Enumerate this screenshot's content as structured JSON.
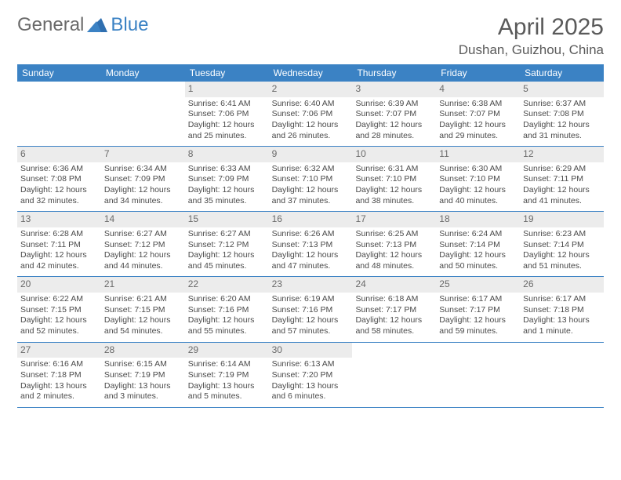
{
  "logo": {
    "textA": "General",
    "textB": "Blue"
  },
  "title": "April 2025",
  "location": "Dushan, Guizhou, China",
  "colors": {
    "header_bg": "#3b82c4",
    "header_text": "#ffffff",
    "daynum_bg": "#ececec",
    "text": "#4a4a4a",
    "rule": "#3b82c4"
  },
  "day_labels": [
    "Sunday",
    "Monday",
    "Tuesday",
    "Wednesday",
    "Thursday",
    "Friday",
    "Saturday"
  ],
  "weeks": [
    [
      null,
      null,
      {
        "n": "1",
        "sr": "Sunrise: 6:41 AM",
        "ss": "Sunset: 7:06 PM",
        "dl": "Daylight: 12 hours and 25 minutes."
      },
      {
        "n": "2",
        "sr": "Sunrise: 6:40 AM",
        "ss": "Sunset: 7:06 PM",
        "dl": "Daylight: 12 hours and 26 minutes."
      },
      {
        "n": "3",
        "sr": "Sunrise: 6:39 AM",
        "ss": "Sunset: 7:07 PM",
        "dl": "Daylight: 12 hours and 28 minutes."
      },
      {
        "n": "4",
        "sr": "Sunrise: 6:38 AM",
        "ss": "Sunset: 7:07 PM",
        "dl": "Daylight: 12 hours and 29 minutes."
      },
      {
        "n": "5",
        "sr": "Sunrise: 6:37 AM",
        "ss": "Sunset: 7:08 PM",
        "dl": "Daylight: 12 hours and 31 minutes."
      }
    ],
    [
      {
        "n": "6",
        "sr": "Sunrise: 6:36 AM",
        "ss": "Sunset: 7:08 PM",
        "dl": "Daylight: 12 hours and 32 minutes."
      },
      {
        "n": "7",
        "sr": "Sunrise: 6:34 AM",
        "ss": "Sunset: 7:09 PM",
        "dl": "Daylight: 12 hours and 34 minutes."
      },
      {
        "n": "8",
        "sr": "Sunrise: 6:33 AM",
        "ss": "Sunset: 7:09 PM",
        "dl": "Daylight: 12 hours and 35 minutes."
      },
      {
        "n": "9",
        "sr": "Sunrise: 6:32 AM",
        "ss": "Sunset: 7:10 PM",
        "dl": "Daylight: 12 hours and 37 minutes."
      },
      {
        "n": "10",
        "sr": "Sunrise: 6:31 AM",
        "ss": "Sunset: 7:10 PM",
        "dl": "Daylight: 12 hours and 38 minutes."
      },
      {
        "n": "11",
        "sr": "Sunrise: 6:30 AM",
        "ss": "Sunset: 7:10 PM",
        "dl": "Daylight: 12 hours and 40 minutes."
      },
      {
        "n": "12",
        "sr": "Sunrise: 6:29 AM",
        "ss": "Sunset: 7:11 PM",
        "dl": "Daylight: 12 hours and 41 minutes."
      }
    ],
    [
      {
        "n": "13",
        "sr": "Sunrise: 6:28 AM",
        "ss": "Sunset: 7:11 PM",
        "dl": "Daylight: 12 hours and 42 minutes."
      },
      {
        "n": "14",
        "sr": "Sunrise: 6:27 AM",
        "ss": "Sunset: 7:12 PM",
        "dl": "Daylight: 12 hours and 44 minutes."
      },
      {
        "n": "15",
        "sr": "Sunrise: 6:27 AM",
        "ss": "Sunset: 7:12 PM",
        "dl": "Daylight: 12 hours and 45 minutes."
      },
      {
        "n": "16",
        "sr": "Sunrise: 6:26 AM",
        "ss": "Sunset: 7:13 PM",
        "dl": "Daylight: 12 hours and 47 minutes."
      },
      {
        "n": "17",
        "sr": "Sunrise: 6:25 AM",
        "ss": "Sunset: 7:13 PM",
        "dl": "Daylight: 12 hours and 48 minutes."
      },
      {
        "n": "18",
        "sr": "Sunrise: 6:24 AM",
        "ss": "Sunset: 7:14 PM",
        "dl": "Daylight: 12 hours and 50 minutes."
      },
      {
        "n": "19",
        "sr": "Sunrise: 6:23 AM",
        "ss": "Sunset: 7:14 PM",
        "dl": "Daylight: 12 hours and 51 minutes."
      }
    ],
    [
      {
        "n": "20",
        "sr": "Sunrise: 6:22 AM",
        "ss": "Sunset: 7:15 PM",
        "dl": "Daylight: 12 hours and 52 minutes."
      },
      {
        "n": "21",
        "sr": "Sunrise: 6:21 AM",
        "ss": "Sunset: 7:15 PM",
        "dl": "Daylight: 12 hours and 54 minutes."
      },
      {
        "n": "22",
        "sr": "Sunrise: 6:20 AM",
        "ss": "Sunset: 7:16 PM",
        "dl": "Daylight: 12 hours and 55 minutes."
      },
      {
        "n": "23",
        "sr": "Sunrise: 6:19 AM",
        "ss": "Sunset: 7:16 PM",
        "dl": "Daylight: 12 hours and 57 minutes."
      },
      {
        "n": "24",
        "sr": "Sunrise: 6:18 AM",
        "ss": "Sunset: 7:17 PM",
        "dl": "Daylight: 12 hours and 58 minutes."
      },
      {
        "n": "25",
        "sr": "Sunrise: 6:17 AM",
        "ss": "Sunset: 7:17 PM",
        "dl": "Daylight: 12 hours and 59 minutes."
      },
      {
        "n": "26",
        "sr": "Sunrise: 6:17 AM",
        "ss": "Sunset: 7:18 PM",
        "dl": "Daylight: 13 hours and 1 minute."
      }
    ],
    [
      {
        "n": "27",
        "sr": "Sunrise: 6:16 AM",
        "ss": "Sunset: 7:18 PM",
        "dl": "Daylight: 13 hours and 2 minutes."
      },
      {
        "n": "28",
        "sr": "Sunrise: 6:15 AM",
        "ss": "Sunset: 7:19 PM",
        "dl": "Daylight: 13 hours and 3 minutes."
      },
      {
        "n": "29",
        "sr": "Sunrise: 6:14 AM",
        "ss": "Sunset: 7:19 PM",
        "dl": "Daylight: 13 hours and 5 minutes."
      },
      {
        "n": "30",
        "sr": "Sunrise: 6:13 AM",
        "ss": "Sunset: 7:20 PM",
        "dl": "Daylight: 13 hours and 6 minutes."
      },
      null,
      null,
      null
    ]
  ]
}
